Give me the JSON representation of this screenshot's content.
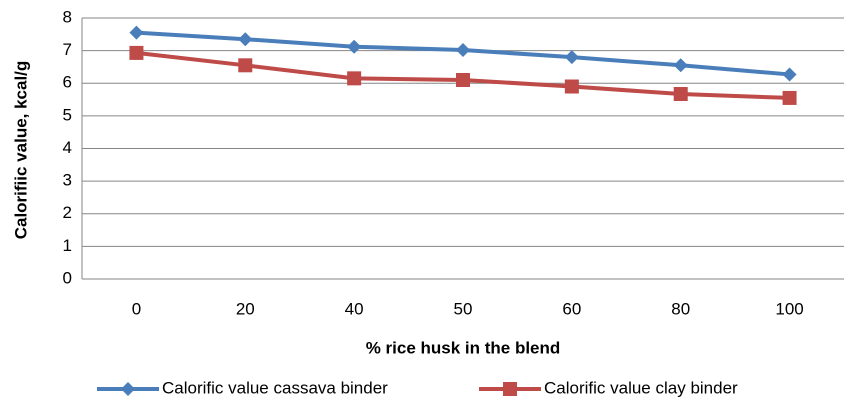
{
  "chart_data": {
    "type": "line",
    "x_label": "% rice husk in the blend",
    "y_label": "Calorifiic value, kcal/g",
    "categories": [
      "0",
      "20",
      "40",
      "50",
      "60",
      "80",
      "100"
    ],
    "series": [
      {
        "name": "Calorific value cassava binder",
        "color": "#4a7ebb",
        "marker": "diamond",
        "values": [
          7.55,
          7.35,
          7.12,
          7.02,
          6.8,
          6.55,
          6.27
        ]
      },
      {
        "name": "Calorific value clay binder",
        "color": "#be4b48",
        "marker": "square",
        "values": [
          6.93,
          6.55,
          6.15,
          6.1,
          5.9,
          5.67,
          5.55
        ]
      }
    ],
    "ylim": [
      0,
      8
    ],
    "yticks": [
      0,
      1,
      2,
      3,
      4,
      5,
      6,
      7,
      8
    ],
    "grid": true,
    "legend": "bottom"
  }
}
